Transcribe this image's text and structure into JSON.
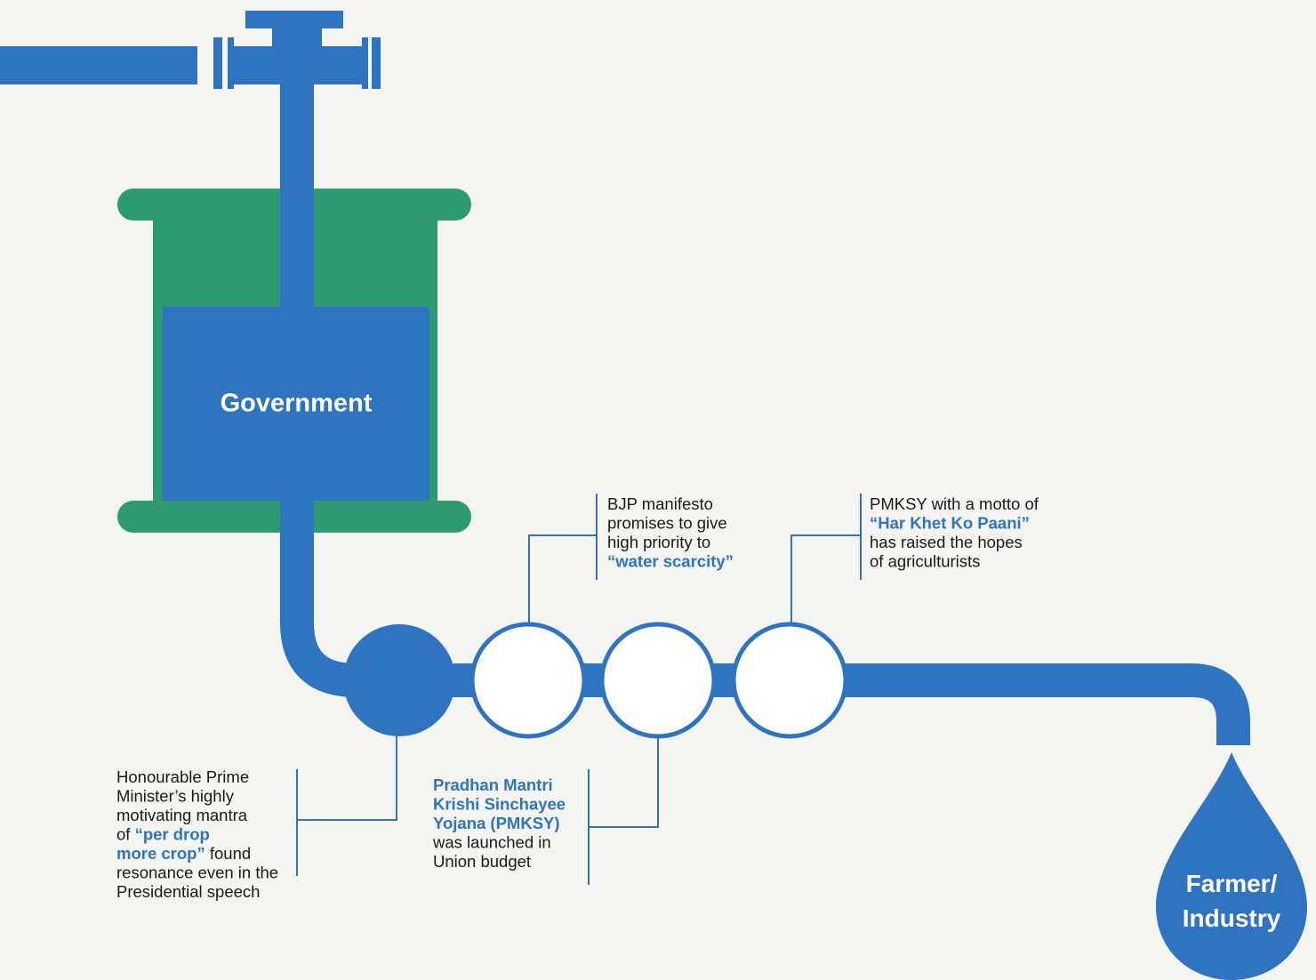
{
  "nodes": {
    "source": {
      "label": "Government"
    },
    "destination": {
      "label_lines": [
        "Farmer/",
        "Industry"
      ]
    }
  },
  "callouts": [
    {
      "lines": [
        [
          "Honourable Prime"
        ],
        [
          "Minister’s highly"
        ],
        [
          "motivating mantra"
        ],
        [
          "of ",
          {
            "text": "“per drop",
            "style": "highlight"
          }
        ],
        [
          {
            "text": "more crop”",
            "style": "highlight"
          },
          " found"
        ],
        [
          "resonance even in the"
        ],
        [
          "Presidential speech"
        ]
      ]
    },
    {
      "lines": [
        [
          {
            "text": "Pradhan Mantri",
            "style": "highlight"
          }
        ],
        [
          {
            "text": "Krishi Sinchayee",
            "style": "highlight"
          }
        ],
        [
          {
            "text": "Yojana (PMKSY)",
            "style": "highlight"
          }
        ],
        [
          "was launched in"
        ],
        [
          "Union budget"
        ]
      ]
    },
    {
      "lines": [
        [
          "BJP manifesto"
        ],
        [
          "promises to give"
        ],
        [
          "high priority to"
        ],
        [
          {
            "text": "“water scarcity”",
            "style": "highlight"
          }
        ]
      ]
    },
    {
      "lines": [
        [
          "PMKSY with a motto of"
        ],
        [
          {
            "text": "“Har Khet Ko Paani”",
            "style": "highlight"
          }
        ],
        [
          "has raised the hopes"
        ],
        [
          "of agriculturists"
        ]
      ]
    }
  ]
}
